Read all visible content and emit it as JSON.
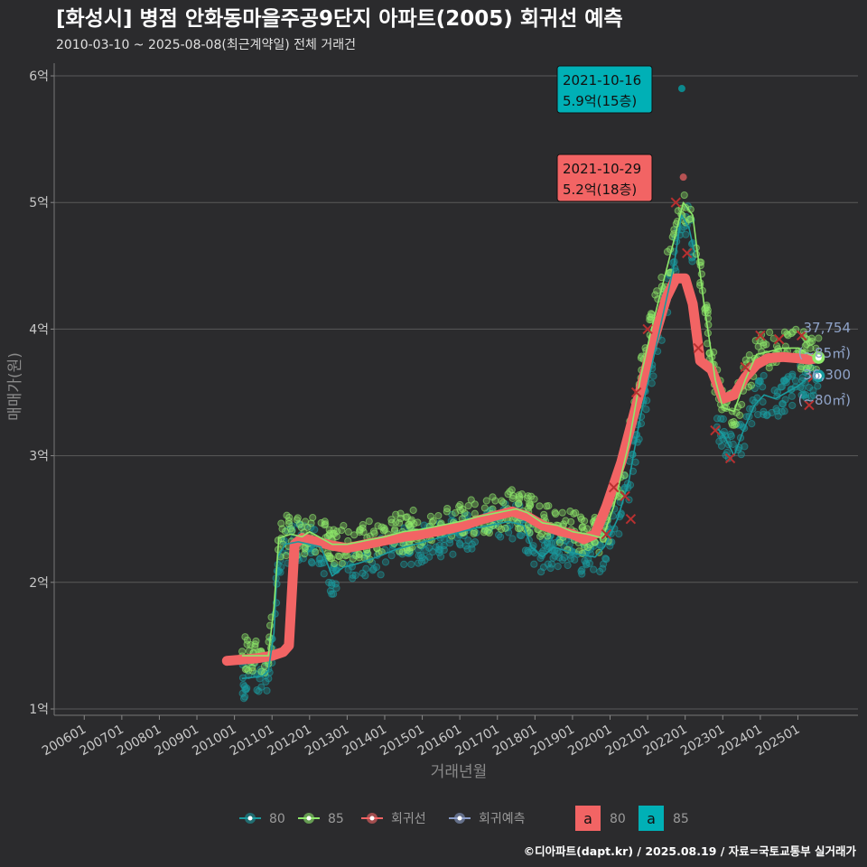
{
  "header": {
    "title": "[화성시] 병점 안화동마을주공9단지 아파트(2005) 회귀선 예측",
    "subtitle": "2010-03-10 ~ 2025-08-08(최근계약일) 전체 거래건"
  },
  "footer": {
    "source": "©디아파트(dapt.kr) / 2025.08.19 / 자료=국토교통부 실거래가"
  },
  "colors": {
    "background": "#2b2b2d",
    "area80": "#1a9a9e",
    "area85": "#8ee86a",
    "regression": "#f26464",
    "forecast": "#8a9cc8",
    "grid": "#5a5a5a"
  },
  "chart_data": {
    "type": "scatter",
    "xlabel": "거래년월",
    "ylabel": "매매가(원)",
    "ylim": [
      1,
      6
    ],
    "yticks": [
      {
        "value": 1,
        "label": "1억"
      },
      {
        "value": 2,
        "label": "2억"
      },
      {
        "value": 3,
        "label": "3억"
      },
      {
        "value": 4,
        "label": "4억"
      },
      {
        "value": 5,
        "label": "5억"
      },
      {
        "value": 6,
        "label": "6억"
      }
    ],
    "xlim": [
      2005.2,
      2026.6
    ],
    "xticks": [
      {
        "value": 2006.0,
        "label": "200601"
      },
      {
        "value": 2007.0,
        "label": "200701"
      },
      {
        "value": 2008.0,
        "label": "200801"
      },
      {
        "value": 2009.0,
        "label": "200901"
      },
      {
        "value": 2010.0,
        "label": "201001"
      },
      {
        "value": 2011.0,
        "label": "201101"
      },
      {
        "value": 2012.0,
        "label": "201201"
      },
      {
        "value": 2013.0,
        "label": "201301"
      },
      {
        "value": 2014.0,
        "label": "201401"
      },
      {
        "value": 2015.0,
        "label": "201501"
      },
      {
        "value": 2016.0,
        "label": "201601"
      },
      {
        "value": 2017.0,
        "label": "201701"
      },
      {
        "value": 2018.0,
        "label": "201801"
      },
      {
        "value": 2019.0,
        "label": "201901"
      },
      {
        "value": 2020.0,
        "label": "202001"
      },
      {
        "value": 2021.0,
        "label": "202101"
      },
      {
        "value": 2022.0,
        "label": "202201"
      },
      {
        "value": 2023.0,
        "label": "202301"
      },
      {
        "value": 2024.0,
        "label": "202401"
      },
      {
        "value": 2025.0,
        "label": "202501"
      }
    ],
    "grid": true,
    "legend_position": "bottom",
    "legend": [
      {
        "key": "80",
        "label": "80",
        "color": "#1a9a9e"
      },
      {
        "key": "85",
        "label": "85",
        "color": "#8ee86a"
      },
      {
        "key": "reg",
        "label": "회귀선",
        "color": "#f26464"
      },
      {
        "key": "fc",
        "label": "회귀예측",
        "color": "#8a9cc8"
      }
    ],
    "label_legend": [
      {
        "letter": "a",
        "label": "80",
        "fill": "#f26464"
      },
      {
        "letter": "a",
        "label": "85",
        "fill": "#00b0b6"
      }
    ],
    "series": [
      {
        "name": "80",
        "kind": "line",
        "points": [
          [
            2010.2,
            1.24
          ],
          [
            2010.5,
            1.25
          ],
          [
            2010.75,
            1.26
          ],
          [
            2010.9,
            1.3
          ],
          [
            2011.05,
            1.6
          ],
          [
            2011.15,
            2.2
          ],
          [
            2011.35,
            2.3
          ],
          [
            2011.7,
            2.32
          ],
          [
            2012.0,
            2.3
          ],
          [
            2012.3,
            2.28
          ],
          [
            2012.6,
            2.05
          ],
          [
            2012.9,
            2.12
          ],
          [
            2013.3,
            2.15
          ],
          [
            2013.8,
            2.2
          ],
          [
            2014.3,
            2.26
          ],
          [
            2014.8,
            2.3
          ],
          [
            2015.3,
            2.34
          ],
          [
            2015.8,
            2.38
          ],
          [
            2016.3,
            2.42
          ],
          [
            2016.8,
            2.45
          ],
          [
            2017.3,
            2.48
          ],
          [
            2017.7,
            2.45
          ],
          [
            2017.9,
            2.28
          ],
          [
            2018.2,
            2.2
          ],
          [
            2018.5,
            2.28
          ],
          [
            2018.8,
            2.25
          ],
          [
            2019.2,
            2.22
          ],
          [
            2019.6,
            2.2
          ],
          [
            2019.85,
            2.28
          ],
          [
            2020.2,
            2.5
          ],
          [
            2020.5,
            2.8
          ],
          [
            2020.8,
            3.3
          ],
          [
            2021.1,
            3.7
          ],
          [
            2021.4,
            4.1
          ],
          [
            2021.7,
            4.5
          ],
          [
            2021.9,
            4.9
          ],
          [
            2022.1,
            4.8
          ],
          [
            2022.25,
            4.6
          ]
        ]
      },
      {
        "name": "80",
        "kind": "line",
        "points": [
          [
            2022.85,
            3.22
          ],
          [
            2023.05,
            3.15
          ],
          [
            2023.3,
            3.0
          ],
          [
            2023.55,
            3.2
          ],
          [
            2023.85,
            3.4
          ],
          [
            2024.1,
            3.48
          ],
          [
            2024.4,
            3.45
          ],
          [
            2024.7,
            3.5
          ],
          [
            2025.0,
            3.55
          ],
          [
            2025.3,
            3.62
          ],
          [
            2025.55,
            3.63
          ]
        ]
      },
      {
        "name": "85",
        "kind": "line",
        "points": [
          [
            2010.2,
            1.42
          ],
          [
            2010.6,
            1.42
          ],
          [
            2010.9,
            1.42
          ],
          [
            2011.05,
            1.8
          ],
          [
            2011.18,
            2.35
          ],
          [
            2011.5,
            2.38
          ],
          [
            2011.8,
            2.36
          ],
          [
            2012.0,
            2.4
          ],
          [
            2012.3,
            2.35
          ],
          [
            2012.6,
            2.3
          ],
          [
            2013.0,
            2.3
          ],
          [
            2013.5,
            2.33
          ],
          [
            2014.0,
            2.36
          ],
          [
            2014.5,
            2.4
          ],
          [
            2015.0,
            2.42
          ],
          [
            2015.5,
            2.45
          ],
          [
            2016.0,
            2.48
          ],
          [
            2016.5,
            2.52
          ],
          [
            2017.0,
            2.55
          ],
          [
            2017.5,
            2.58
          ],
          [
            2017.8,
            2.55
          ],
          [
            2018.2,
            2.47
          ],
          [
            2018.6,
            2.45
          ],
          [
            2019.0,
            2.4
          ],
          [
            2019.4,
            2.38
          ],
          [
            2019.8,
            2.35
          ],
          [
            2020.1,
            2.6
          ],
          [
            2020.5,
            3.1
          ],
          [
            2020.8,
            3.6
          ],
          [
            2021.1,
            4.0
          ],
          [
            2021.4,
            4.35
          ],
          [
            2021.7,
            4.7
          ],
          [
            2021.95,
            5.0
          ],
          [
            2022.2,
            4.9
          ],
          [
            2022.5,
            4.2
          ],
          [
            2022.8,
            3.6
          ],
          [
            2023.0,
            3.38
          ],
          [
            2023.3,
            3.35
          ],
          [
            2023.6,
            3.6
          ],
          [
            2023.9,
            3.8
          ],
          [
            2024.2,
            3.82
          ],
          [
            2024.6,
            3.85
          ],
          [
            2025.0,
            3.85
          ],
          [
            2025.3,
            3.8
          ],
          [
            2025.55,
            3.77
          ]
        ]
      },
      {
        "name": "회귀선",
        "kind": "band",
        "points": [
          [
            2009.8,
            1.38
          ],
          [
            2010.2,
            1.39
          ],
          [
            2010.6,
            1.4
          ],
          [
            2011.0,
            1.42
          ],
          [
            2011.3,
            1.45
          ],
          [
            2011.45,
            1.5
          ],
          [
            2011.6,
            2.3
          ],
          [
            2011.8,
            2.35
          ],
          [
            2012.2,
            2.32
          ],
          [
            2012.6,
            2.29
          ],
          [
            2013.0,
            2.27
          ],
          [
            2013.5,
            2.3
          ],
          [
            2014.0,
            2.33
          ],
          [
            2014.5,
            2.36
          ],
          [
            2015.0,
            2.38
          ],
          [
            2015.5,
            2.41
          ],
          [
            2016.0,
            2.44
          ],
          [
            2016.5,
            2.49
          ],
          [
            2017.0,
            2.53
          ],
          [
            2017.4,
            2.56
          ],
          [
            2017.8,
            2.52
          ],
          [
            2018.2,
            2.45
          ],
          [
            2018.6,
            2.41
          ],
          [
            2019.0,
            2.38
          ],
          [
            2019.3,
            2.34
          ],
          [
            2019.6,
            2.38
          ],
          [
            2019.9,
            2.6
          ],
          [
            2020.3,
            2.95
          ],
          [
            2020.7,
            3.4
          ],
          [
            2021.1,
            3.85
          ],
          [
            2021.5,
            4.25
          ],
          [
            2021.75,
            4.4
          ],
          [
            2022.0,
            4.4
          ],
          [
            2022.2,
            4.2
          ],
          [
            2022.4,
            3.75
          ],
          [
            2022.7,
            3.68
          ],
          [
            2023.0,
            3.45
          ],
          [
            2023.3,
            3.48
          ],
          [
            2023.6,
            3.62
          ],
          [
            2023.9,
            3.72
          ],
          [
            2024.2,
            3.77
          ],
          [
            2024.6,
            3.78
          ],
          [
            2025.0,
            3.77
          ],
          [
            2025.3,
            3.76
          ],
          [
            2025.5,
            3.77
          ]
        ]
      }
    ],
    "cross_marks": [
      [
        2019.9,
        2.38
      ],
      [
        2020.1,
        2.75
      ],
      [
        2020.4,
        2.68
      ],
      [
        2020.55,
        2.5
      ],
      [
        2020.7,
        3.5
      ],
      [
        2021.0,
        4.0
      ],
      [
        2021.75,
        5.0
      ],
      [
        2022.05,
        4.6
      ],
      [
        2022.35,
        3.85
      ],
      [
        2022.8,
        3.2
      ],
      [
        2023.2,
        2.98
      ],
      [
        2023.6,
        3.7
      ],
      [
        2024.0,
        3.95
      ],
      [
        2024.5,
        3.92
      ],
      [
        2025.1,
        3.95
      ],
      [
        2025.3,
        3.4
      ],
      [
        2025.4,
        3.62
      ]
    ],
    "end_points": [
      {
        "series": "85",
        "x": 2025.55,
        "y": 3.7754,
        "value_label": "37,754",
        "area_label": "(~85㎡)",
        "color": "#8ee86a"
      },
      {
        "series": "80",
        "x": 2025.55,
        "y": 3.63,
        "value_label": "36,300",
        "area_label": "(~80㎡)",
        "color": "#1a9a9e"
      }
    ],
    "annotations": [
      {
        "date": "2021-10-16",
        "price": "5.9억(15층)",
        "x": 2021.79,
        "y": 5.9,
        "fill": "#00b0b6"
      },
      {
        "date": "2021-10-29",
        "price": "5.2억(18층)",
        "x": 2021.83,
        "y": 5.2,
        "fill": "#f26464"
      }
    ]
  }
}
